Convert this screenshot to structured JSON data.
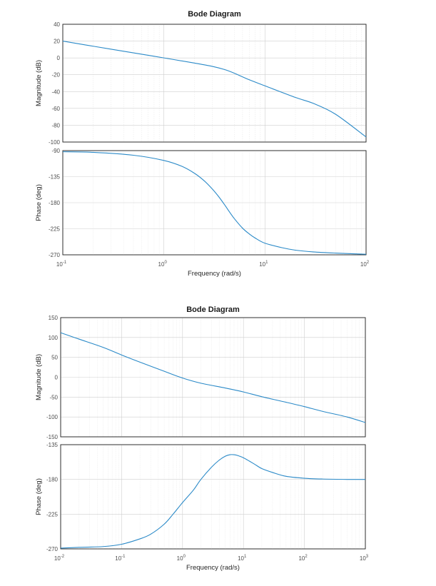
{
  "chart_data": [
    {
      "type": "line",
      "title": "Bode Diagram",
      "xlabel": "Frequency  (rad/s)",
      "x_scale": "log",
      "xlim": [
        0.1,
        100
      ],
      "x_ticks": [
        {
          "base": "10",
          "exp": "-1"
        },
        {
          "base": "10",
          "exp": "0"
        },
        {
          "base": "10",
          "exp": "1"
        },
        {
          "base": "10",
          "exp": "2"
        }
      ],
      "grid": true,
      "panels": [
        {
          "ylabel": "Magnitude (dB)",
          "ylim": [
            -100,
            40
          ],
          "y_ticks": [
            "40",
            "20",
            "0",
            "-20",
            "-40",
            "-60",
            "-80",
            "-100"
          ],
          "series": [
            {
              "x": [
                0.1,
                0.2,
                0.5,
                1,
                2,
                3,
                4,
                5,
                7,
                10,
                20,
                30,
                50,
                100
              ],
              "values": [
                20,
                13.9,
                6.0,
                0,
                -6.1,
                -10.0,
                -13.9,
                -18.3,
                -26.0,
                -33.2,
                -47.0,
                -54.0,
                -67.0,
                -94
              ]
            }
          ]
        },
        {
          "ylabel": "Phase (deg)",
          "ylim": [
            -270,
            -90
          ],
          "y_ticks": [
            "-90",
            "-135",
            "-180",
            "-225",
            "-270"
          ],
          "series": [
            {
              "x": [
                0.1,
                0.2,
                0.5,
                1,
                1.5,
                2,
                2.5,
                3,
                3.5,
                4,
                4.5,
                5,
                6,
                7,
                8,
                10,
                15,
                20,
                30,
                50,
                100
              ],
              "values": [
                -92,
                -93,
                -98,
                -107,
                -117,
                -129,
                -142,
                -156,
                -170,
                -184,
                -197,
                -208,
                -224,
                -234,
                -241,
                -250,
                -258,
                -262,
                -265,
                -267,
                -269
              ]
            }
          ]
        }
      ]
    },
    {
      "type": "line",
      "title": "Bode Diagram",
      "xlabel": "Frequency  (rad/s)",
      "x_scale": "log",
      "xlim": [
        0.01,
        1000
      ],
      "x_ticks": [
        {
          "base": "10",
          "exp": "-2"
        },
        {
          "base": "10",
          "exp": "-1"
        },
        {
          "base": "10",
          "exp": "0"
        },
        {
          "base": "10",
          "exp": "1"
        },
        {
          "base": "10",
          "exp": "2"
        },
        {
          "base": "10",
          "exp": "3"
        }
      ],
      "grid": true,
      "panels": [
        {
          "ylabel": "Magnitude (dB)",
          "ylim": [
            -150,
            150
          ],
          "y_ticks": [
            "150",
            "100",
            "50",
            "0",
            "-50",
            "-100",
            "-150"
          ],
          "series": [
            {
              "x": [
                0.01,
                0.02,
                0.05,
                0.1,
                0.2,
                0.5,
                1,
                2,
                5,
                10,
                20,
                50,
                100,
                200,
                500,
                1000
              ],
              "values": [
                112,
                96,
                75,
                56,
                38,
                15,
                -2,
                -15,
                -27,
                -37,
                -49,
                -63,
                -74,
                -86,
                -100,
                -114
              ]
            }
          ]
        },
        {
          "ylabel": "Phase (deg)",
          "ylim": [
            -270,
            -135
          ],
          "y_ticks": [
            "-135",
            "-180",
            "-225",
            "-270"
          ],
          "series": [
            {
              "x": [
                0.01,
                0.02,
                0.05,
                0.1,
                0.2,
                0.3,
                0.5,
                0.7,
                1,
                1.5,
                2,
                3,
                4,
                5,
                6,
                7,
                8,
                10,
                15,
                20,
                30,
                50,
                100,
                200,
                500,
                1000
              ],
              "values": [
                -269,
                -268,
                -267,
                -264,
                -257,
                -251,
                -238,
                -225,
                -210,
                -194,
                -180,
                -164,
                -155,
                -150,
                -148,
                -148,
                -149,
                -152,
                -160,
                -166,
                -171,
                -176,
                -178.5,
                -179.5,
                -180,
                -180
              ]
            }
          ]
        }
      ]
    }
  ]
}
